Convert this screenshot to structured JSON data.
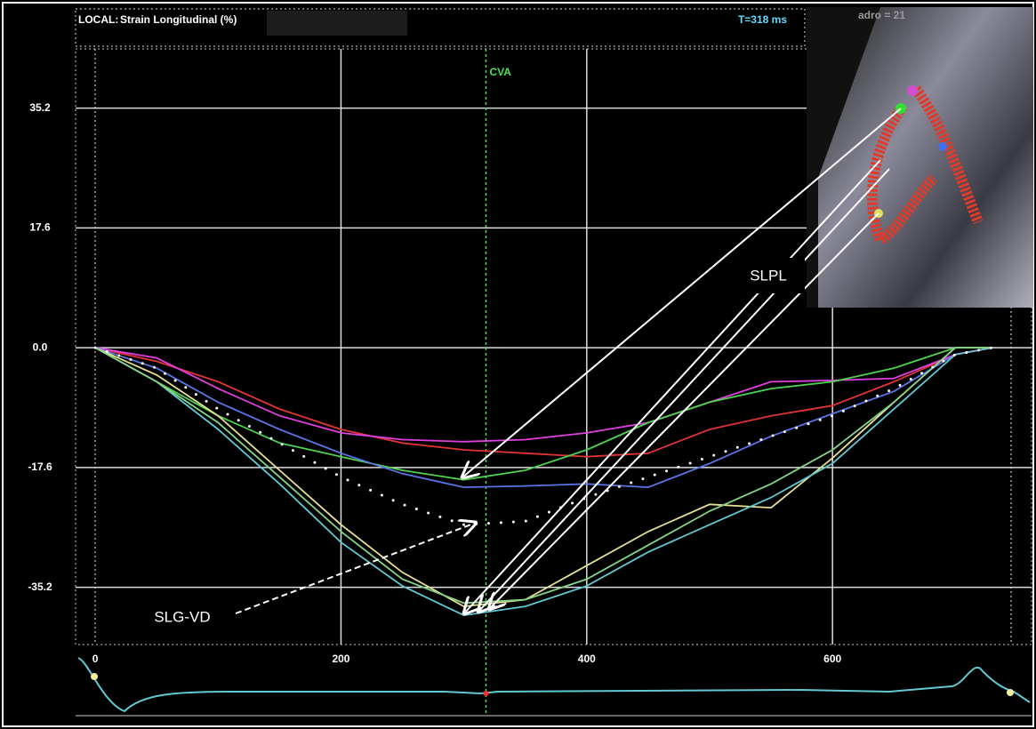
{
  "header": {
    "mode": "LOCAL:",
    "measure": "Strain Longitudinal (%)",
    "time": "T=318 ms",
    "frame": "adro = 21"
  },
  "chart_data": {
    "type": "line",
    "x": [
      0,
      50,
      100,
      150,
      200,
      250,
      300,
      350,
      400,
      450,
      500,
      550,
      600,
      650,
      700,
      730
    ],
    "series": [
      {
        "color": "#e03434",
        "values": [
          0,
          -2,
          -5,
          -9,
          -12,
          -14,
          -15,
          -15.5,
          -16,
          -15.5,
          -12,
          -10,
          -8.5,
          -5,
          -1,
          0
        ]
      },
      {
        "color": "#e040e0",
        "values": [
          0,
          -1.5,
          -6,
          -10,
          -12.5,
          -13.5,
          -13.8,
          -13.5,
          -12.5,
          -11,
          -8,
          -5,
          -4.8,
          -4.5,
          -1,
          0
        ]
      },
      {
        "color": "#4fd24f",
        "values": [
          0,
          -5,
          -10,
          -14,
          -16,
          -18,
          -19.4,
          -18,
          -15,
          -11,
          -8,
          -6,
          -5,
          -3,
          0,
          0
        ]
      },
      {
        "color": "#5a74e6",
        "values": [
          0,
          -3,
          -8,
          -12,
          -15.5,
          -18.5,
          -20.5,
          -20.3,
          -20,
          -20.5,
          -17,
          -13,
          -9.7,
          -6.4,
          -1,
          0
        ]
      },
      {
        "color": "#e6e096",
        "values": [
          0,
          -4,
          -10,
          -18,
          -26,
          -33,
          -38,
          -37,
          -32,
          -27,
          -23,
          -23.5,
          -16.2,
          -8,
          0,
          0
        ]
      },
      {
        "color": "#62c8d2",
        "values": [
          0,
          -5,
          -12,
          -20,
          -28.6,
          -35,
          -39.3,
          -38,
          -35,
          -30,
          -26,
          -22,
          -17,
          -9,
          -1,
          0
        ]
      },
      {
        "color": "#86d486",
        "values": [
          0,
          -5,
          -11,
          -19,
          -27,
          -34,
          -37.5,
          -37,
          -34,
          -29,
          -24,
          -20,
          -15,
          -8,
          0,
          0
        ]
      },
      {
        "color": "#ffffff",
        "dotted": true,
        "values": [
          0,
          -3,
          -9,
          -14,
          -19,
          -23,
          -26,
          -25.5,
          -22,
          -19,
          -16,
          -13,
          -10,
          -6,
          -1,
          0
        ]
      }
    ],
    "xlim": [
      -16,
      762
    ],
    "xticks": [
      0,
      200,
      400,
      600
    ],
    "ylim": [
      -43.6,
      43.9
    ],
    "yticks": [
      35.2,
      17.6,
      {
        "value": 0,
        "label": "0.0"
      },
      -17.6,
      -35.2
    ],
    "grid": true,
    "marker": {
      "label": "CVA",
      "x": 318,
      "color": "#4ee04e"
    },
    "annotations": [
      "SLPL",
      "SLG-VD"
    ]
  }
}
